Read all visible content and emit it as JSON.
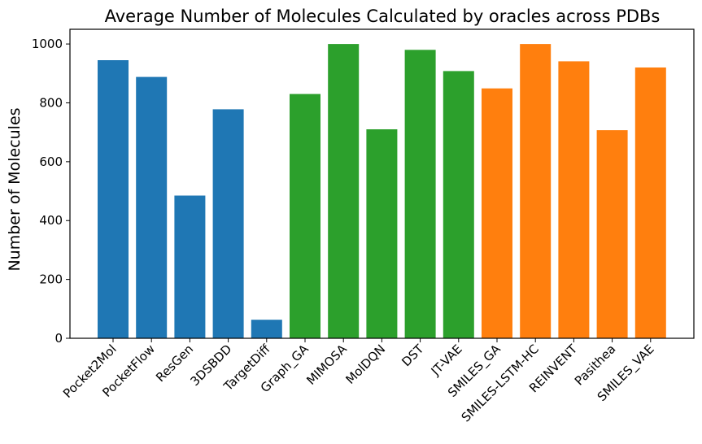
{
  "chart_data": {
    "type": "bar",
    "title": "Average Number of Molecules Calculated by oracles across PDBs",
    "xlabel": "",
    "ylabel": "Number of Molecules",
    "ylim": [
      0,
      1050
    ],
    "yticks": [
      0,
      200,
      400,
      600,
      800,
      1000
    ],
    "ytick_labels": [
      "0",
      "200",
      "400",
      "600",
      "800",
      "1000"
    ],
    "categories": [
      "Pocket2Mol",
      "PocketFlow",
      "ResGen",
      "3DSBDD",
      "TargetDiff",
      "Graph_GA",
      "MIMOSA",
      "MolDQN",
      "DST",
      "JT-VAE",
      "SMILES_GA",
      "SMILES-LSTM-HC",
      "REINVENT",
      "Pasithea",
      "SMILES_VAE"
    ],
    "values": [
      945,
      888,
      485,
      778,
      63,
      830,
      1000,
      710,
      980,
      908,
      849,
      1000,
      941,
      707,
      920
    ],
    "groups": [
      "blue",
      "blue",
      "blue",
      "blue",
      "blue",
      "green",
      "green",
      "green",
      "green",
      "green",
      "orange",
      "orange",
      "orange",
      "orange",
      "orange"
    ],
    "colors": {
      "blue": "#1f77b4",
      "green": "#2ca02c",
      "orange": "#ff7f0e"
    },
    "grid": false,
    "legend": "none"
  }
}
